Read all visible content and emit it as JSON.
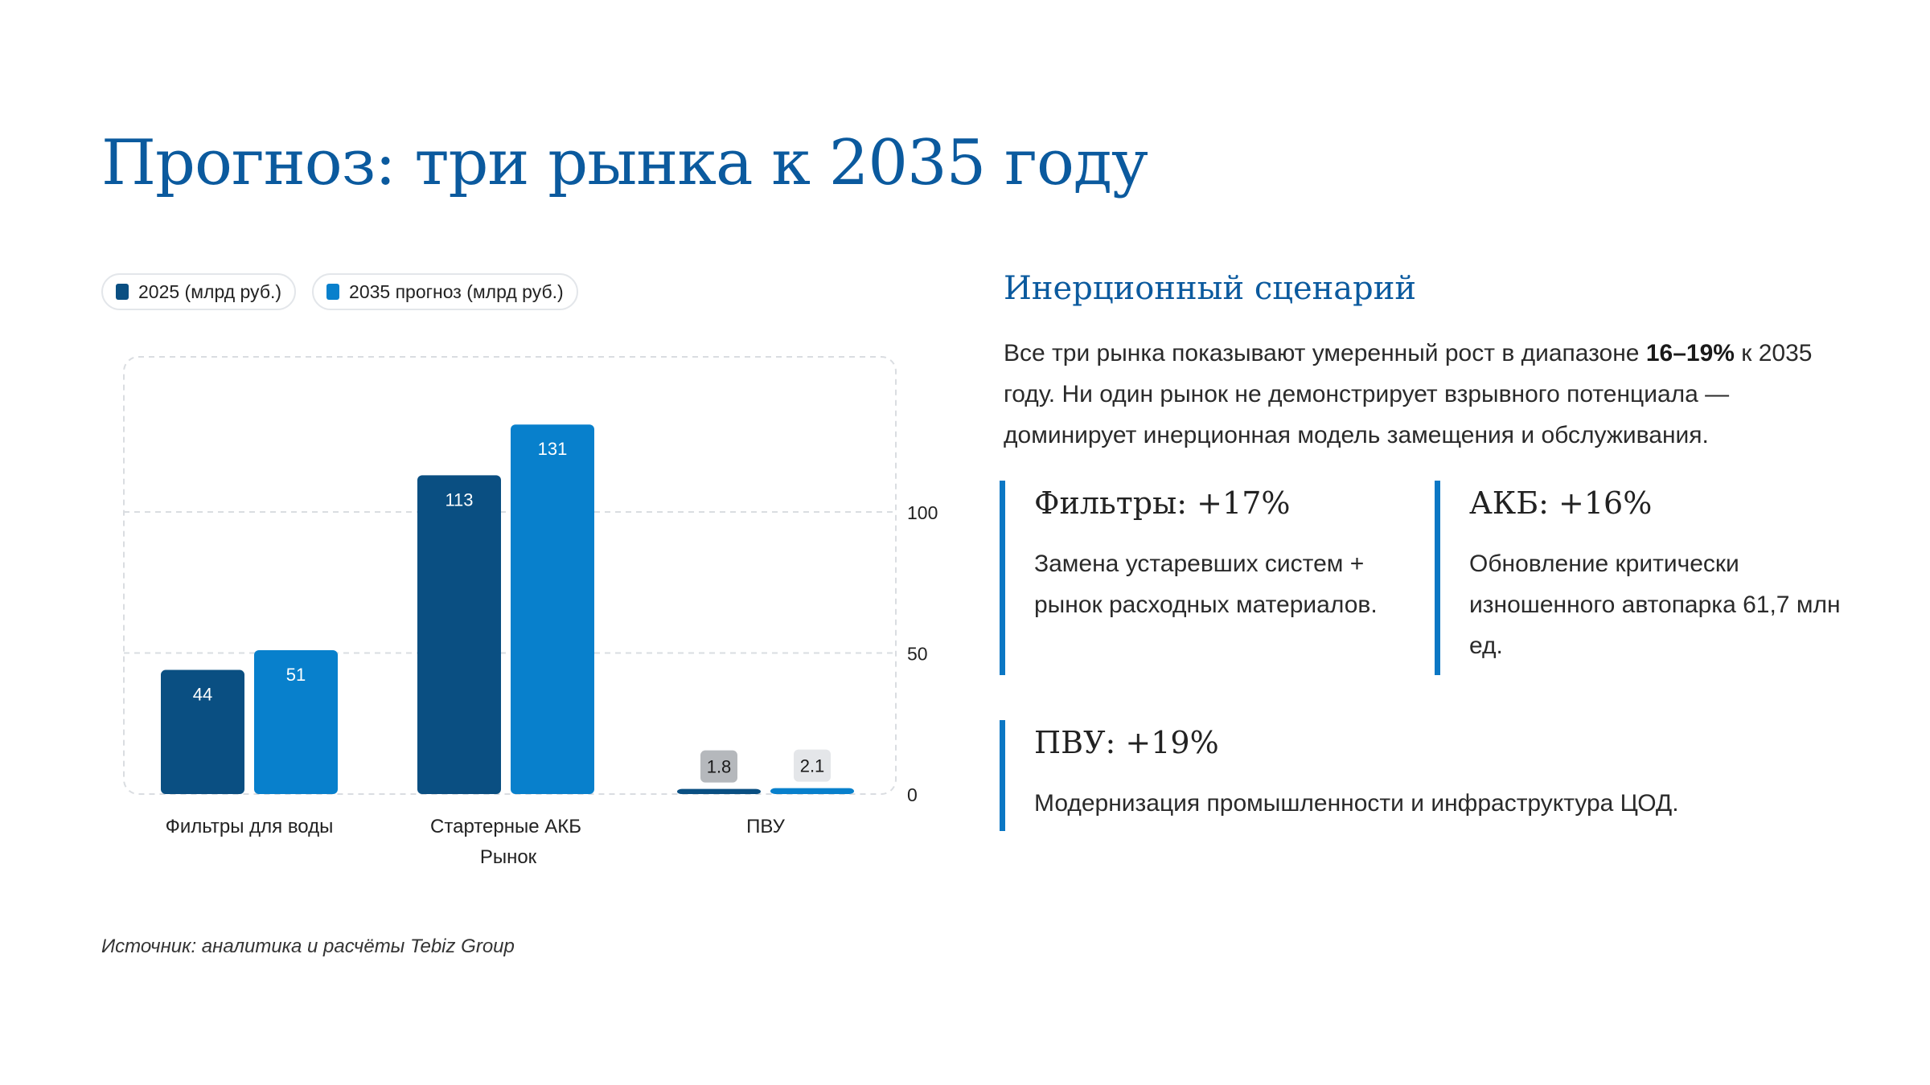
{
  "page": {
    "title": "Прогноз: три рынка к 2035 году"
  },
  "legend": {
    "items": [
      {
        "label": "2025 (млрд руб.)",
        "color": "#0a4f82"
      },
      {
        "label": "2035 прогноз (млрд руб.)",
        "color": "#0880cc"
      }
    ]
  },
  "chart_data": {
    "type": "bar",
    "categories": [
      "Фильтры для воды",
      "Стартерные АКБ",
      "ПВУ"
    ],
    "series": [
      {
        "name": "2025 (млрд руб.)",
        "values": [
          44,
          113,
          1.8
        ],
        "labels": [
          "44",
          "113",
          "1.8"
        ],
        "color": "#0a4f82"
      },
      {
        "name": "2035 прогноз (млрд руб.)",
        "values": [
          51,
          131,
          2.1
        ],
        "labels": [
          "51",
          "131",
          "2.1"
        ],
        "color": "#0880cc"
      }
    ],
    "xlabel": "Рынок",
    "ylabel": "",
    "ylim": [
      0,
      150
    ],
    "yticks": [
      0,
      50,
      100
    ],
    "ytick_labels": [
      "0",
      "50",
      "100"
    ],
    "y_axis_side": "right",
    "grid": true,
    "legend_position": "top-left"
  },
  "scenario": {
    "title": "Инерционный сценарий",
    "text_before": "Все три рынка показывают умеренный рост в диапазоне ",
    "highlight": "16–19%",
    "text_after": " к 2035 году. Ни один рынок не демонстрирует взрывного потенциала — доминирует инерционная модель замещения и обслуживания."
  },
  "cards": [
    {
      "title": "Фильтры: +17%",
      "text": "Замена устаревших систем + рынок расходных материалов."
    },
    {
      "title": "АКБ: +16%",
      "text": "Обновление критически изношенного автопарка 61,7 млн ед."
    },
    {
      "title": "ПВУ: +19%",
      "text": "Модернизация промышленности и инфраструктура ЦОД."
    }
  ],
  "footer": {
    "source": "Источник: аналитика и расчёты Tebiz Group"
  }
}
